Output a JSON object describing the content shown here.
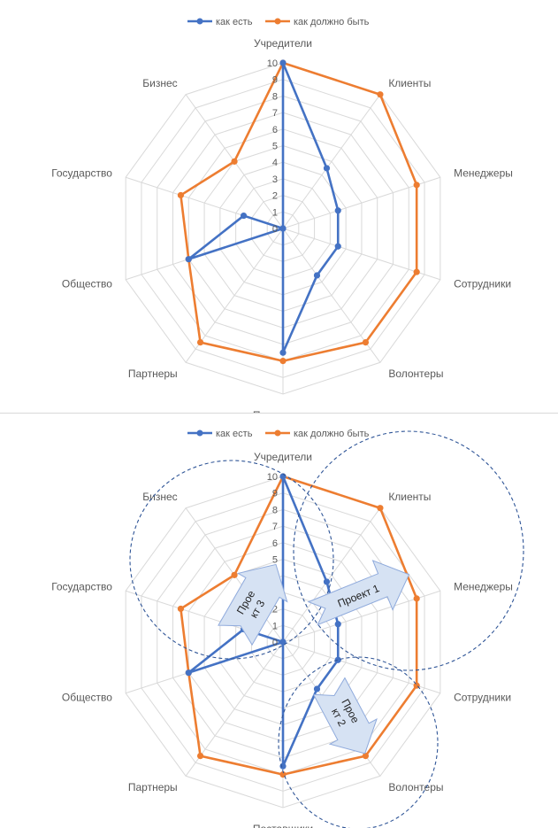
{
  "chart_data": [
    {
      "type": "radar",
      "categories": [
        "Учредители",
        "Клиенты",
        "Менеджеры",
        "Сотрудники",
        "Волонтеры",
        "Поставщики",
        "Партнеры",
        "Общество",
        "Государство",
        "Бизнес"
      ],
      "ticks": [
        "0",
        "1",
        "2",
        "3",
        "4",
        "5",
        "6",
        "7",
        "8",
        "9",
        "10"
      ],
      "rlim": [
        0,
        10
      ],
      "grid": true,
      "legend": "top",
      "series": [
        {
          "name": "как есть",
          "color": "#4472C4",
          "values": [
            10,
            4.5,
            3.5,
            3.5,
            3.5,
            7.5,
            0,
            6,
            2.5,
            0
          ]
        },
        {
          "name": "как должно быть",
          "color": "#ED7D31",
          "values": [
            10,
            10,
            8.5,
            8.5,
            8.5,
            8,
            8.5,
            6,
            6.5,
            5
          ]
        }
      ]
    },
    {
      "type": "radar",
      "categories": [
        "Учредители",
        "Клиенты",
        "Менеджеры",
        "Сотрудники",
        "Волонтеры",
        "Поставщики",
        "Партнеры",
        "Общество",
        "Государство",
        "Бизнес"
      ],
      "ticks": [
        "0",
        "1",
        "2",
        "3",
        "4",
        "5",
        "6",
        "7",
        "8",
        "9",
        "10"
      ],
      "rlim": [
        0,
        10
      ],
      "grid": true,
      "legend": "top",
      "series": [
        {
          "name": "как есть",
          "color": "#4472C4",
          "values": [
            10,
            4.5,
            3.5,
            3.5,
            3.5,
            7.5,
            0,
            6,
            2.5,
            0
          ]
        },
        {
          "name": "как должно быть",
          "color": "#ED7D31",
          "values": [
            10,
            10,
            8.5,
            8.5,
            8.5,
            8,
            8.5,
            6,
            6.5,
            5
          ]
        }
      ],
      "annotations": [
        {
          "label": "Проект 1"
        },
        {
          "label": "Проект 2",
          "lines": [
            "Прое",
            "кт 2"
          ]
        },
        {
          "label": "Проект 3",
          "lines": [
            "Прое",
            "кт 3"
          ]
        }
      ]
    }
  ]
}
